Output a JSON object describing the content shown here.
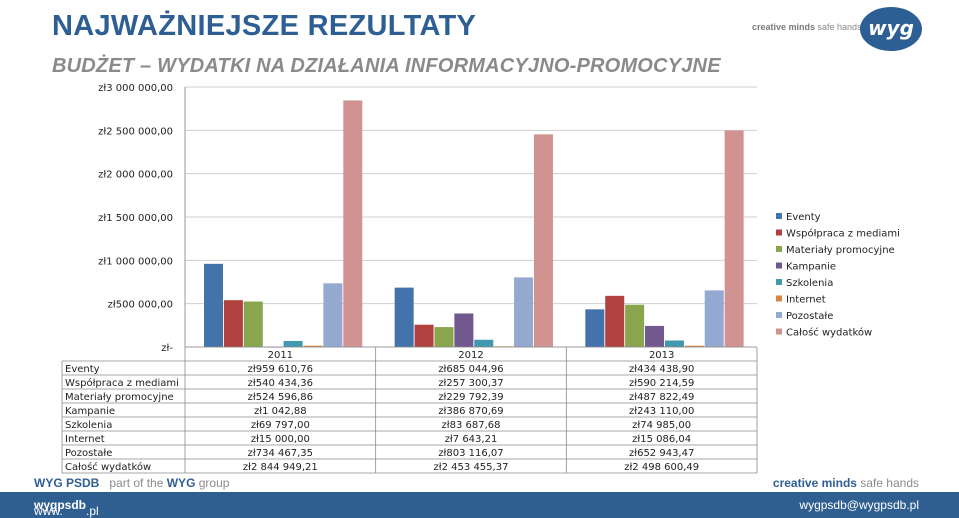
{
  "header": {
    "title": "NAJWAŻNIEJSZE REZULTATY",
    "subtitle": "BUDŻET – WYDATKI NA DZIAŁANIA INFORMACYJNO-PROMOCYJNE",
    "tagline_bold": "creative minds",
    "tagline_rest": " safe hands",
    "logo_text": "wyg"
  },
  "footer": {
    "org": "WYG PSDB",
    "part_of": "part of the ",
    "group_brand": "WYG",
    "group_rest": " group",
    "slogan_bold": "creative minds",
    "slogan_rest": " safe hands",
    "url_prefix": "www.",
    "url_bold": "wygpsdb",
    "url_suffix": ".pl",
    "email": "wygpsdb@wygpsdb.pl"
  },
  "colors": {
    "title": "#2e5f94",
    "footer_bar": "#2f5f91"
  },
  "chart_data": {
    "type": "bar",
    "categories": [
      "2011",
      "2012",
      "2013"
    ],
    "ylim": [
      0,
      3000000
    ],
    "yticks": [
      0,
      500000,
      1000000,
      1500000,
      2000000,
      2500000,
      3000000
    ],
    "ytick_labels": [
      "zł-",
      "zł500 000,00",
      "zł1 000 000,00",
      "zł1 500 000,00",
      "zł2 000 000,00",
      "zł2 500 000,00",
      "zł3 000 000,00"
    ],
    "grid": true,
    "legend_position": "right",
    "series": [
      {
        "name": "Eventy",
        "color": "#4472aa",
        "values": [
          959610.76,
          685044.96,
          434438.9
        ],
        "labels": [
          "zł959 610,76",
          "zł685 044,96",
          "zł434 438,90"
        ]
      },
      {
        "name": "Współpraca z mediami",
        "color": "#b0413e",
        "values": [
          540434.36,
          257300.37,
          590214.59
        ],
        "labels": [
          "zł540 434,36",
          "zł257 300,37",
          "zł590 214,59"
        ]
      },
      {
        "name": "Materiały promocyjne",
        "color": "#89a54e",
        "values": [
          524596.86,
          229792.39,
          487822.49
        ],
        "labels": [
          "zł524 596,86",
          "zł229 792,39",
          "zł487 822,49"
        ]
      },
      {
        "name": "Kampanie",
        "color": "#71588f",
        "values": [
          1042.88,
          386870.69,
          243110.0
        ],
        "labels": [
          "zł1 042,88",
          "zł386 870,69",
          "zł243 110,00"
        ]
      },
      {
        "name": "Szkolenia",
        "color": "#4198af",
        "values": [
          69797.0,
          83687.68,
          74985.0
        ],
        "labels": [
          "zł69 797,00",
          "zł83 687,68",
          "zł74 985,00"
        ]
      },
      {
        "name": "Internet",
        "color": "#db843d",
        "values": [
          15000.0,
          7643.21,
          15086.04
        ],
        "labels": [
          "zł15 000,00",
          "zł7 643,21",
          "zł15 086,04"
        ]
      },
      {
        "name": "Pozostałe",
        "color": "#93a9cf",
        "values": [
          734467.35,
          803116.07,
          652943.47
        ],
        "labels": [
          "zł734 467,35",
          "zł803 116,07",
          "zł652 943,47"
        ]
      },
      {
        "name": "Całość wydatków",
        "color": "#d19392",
        "values": [
          2844949.21,
          2453455.37,
          2498600.49
        ],
        "labels": [
          "zł2 844 949,21",
          "zł2 453 455,37",
          "zł2 498 600,49"
        ]
      }
    ]
  }
}
